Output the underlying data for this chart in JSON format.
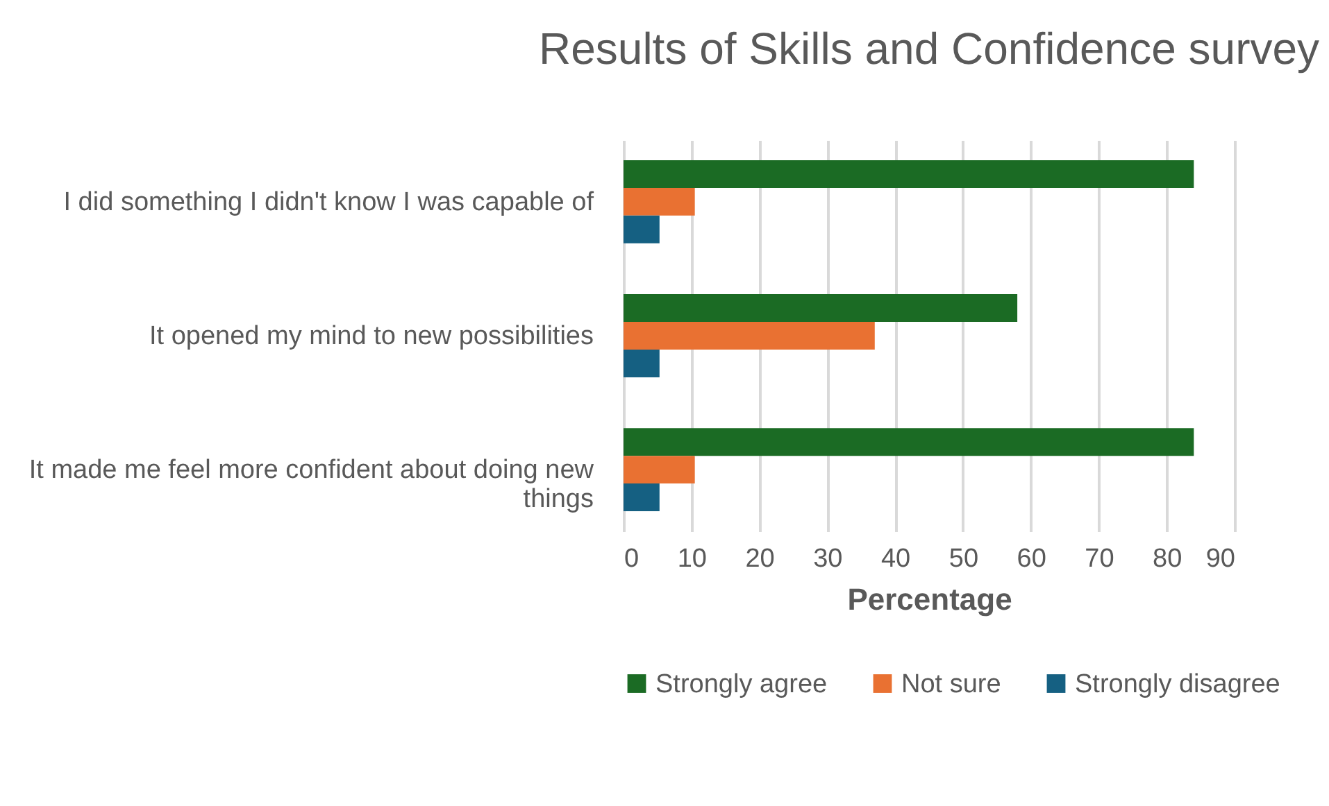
{
  "chart_data": {
    "type": "bar",
    "orientation": "horizontal",
    "title": "Results of Skills and Confidence survey",
    "xlabel": "Percentage",
    "categories": [
      "I did something I didn't know I was capable of",
      "It opened my mind to new possibilities",
      "It made me feel more confident about doing new things"
    ],
    "series": [
      {
        "name": "Strongly agree",
        "color": "#1b6b24",
        "values": [
          84,
          58,
          84
        ]
      },
      {
        "name": "Not sure",
        "color": "#e97132",
        "values": [
          10.5,
          37,
          10.5
        ]
      },
      {
        "name": "Strongly disagree",
        "color": "#156082",
        "values": [
          5.3,
          5.3,
          5.3
        ]
      }
    ],
    "xlim": [
      0,
      90
    ],
    "xticks": [
      0,
      10,
      20,
      30,
      40,
      50,
      60,
      70,
      80,
      90
    ],
    "grid": "x",
    "legend": "bottom"
  }
}
